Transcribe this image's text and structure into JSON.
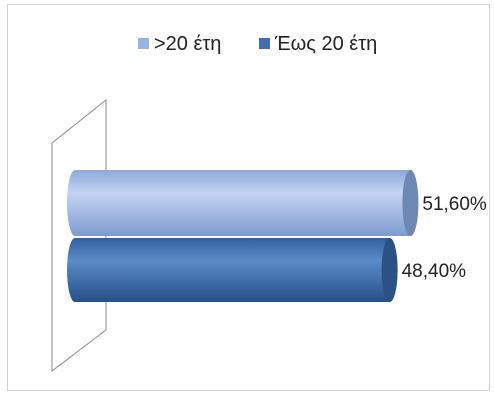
{
  "chart_data": {
    "type": "bar",
    "orientation": "horizontal",
    "style": "3d-cylinder",
    "title": "",
    "legend_position": "top",
    "series": [
      {
        "name": ">20 έτη",
        "value": 51.6,
        "label": "51,60%",
        "color": "#95b3e4"
      },
      {
        "name": "Έως 20 έτη",
        "value": 48.4,
        "label": "48,40%",
        "color": "#3f6fae"
      }
    ],
    "xlim": [
      0,
      60
    ],
    "grid": false
  }
}
